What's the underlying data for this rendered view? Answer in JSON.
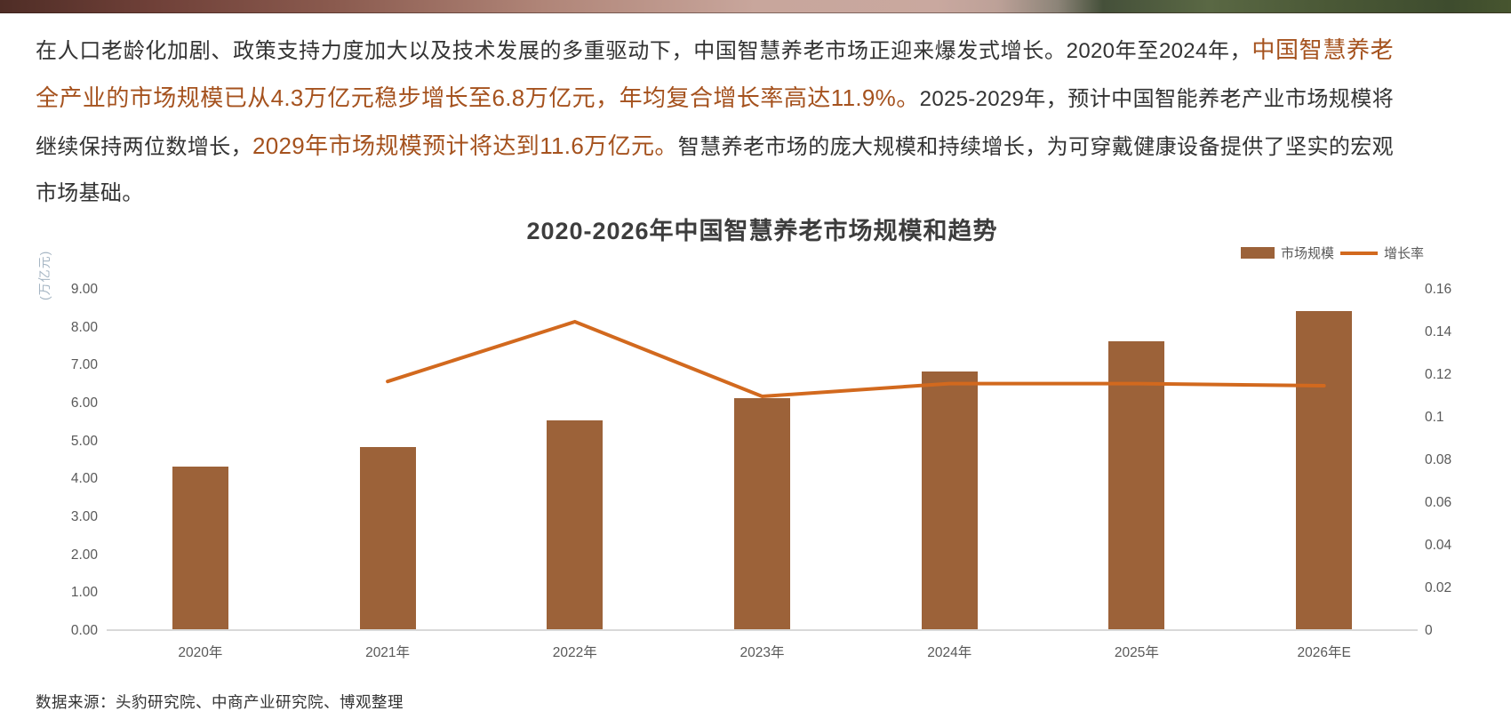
{
  "paragraph": {
    "segments": [
      {
        "text": "在人口老龄化加剧、政策支持力度加大以及技术发展的多重驱动下，中国智慧养老市场正迎来爆发式增长。2020年至2024年，",
        "highlight": false
      },
      {
        "text": "中国智慧养老全产业的市场规模已从4.3万亿元稳步增长至6.8万亿元，年均复合增长率高达11.9%。",
        "highlight": true
      },
      {
        "text": "2025-2029年，预计中国智能养老产业市场规模将继续保持两位数增长，",
        "highlight": false
      },
      {
        "text": "2029年市场规模预计将达到11.6万亿元。",
        "highlight": true
      },
      {
        "text": "智慧养老市场的庞大规模和持续增长，为可穿戴健康设备提供了坚实的宏观市场基础。",
        "highlight": false
      }
    ]
  },
  "chart_data": {
    "type": "bar+line",
    "title": "2020-2026年中国智慧养老市场规模和趋势",
    "categories": [
      "2020年",
      "2021年",
      "2022年",
      "2023年",
      "2024年",
      "2025年",
      "2026年E"
    ],
    "series": [
      {
        "name": "市场规模",
        "type": "bar",
        "axis": "left",
        "unit": "万亿元",
        "color": "#9C6239",
        "values": [
          4.3,
          4.8,
          5.5,
          6.1,
          6.8,
          7.6,
          8.4
        ]
      },
      {
        "name": "增长率",
        "type": "line",
        "axis": "right",
        "color": "#D2691E",
        "values": [
          null,
          0.117,
          0.145,
          0.11,
          0.116,
          0.116,
          0.115
        ]
      }
    ],
    "left_axis": {
      "title": "(万亿元)",
      "min": 0,
      "max": 9,
      "step": 1,
      "tick_labels": [
        "9.00",
        "8.00",
        "7.00",
        "6.00",
        "5.00",
        "4.00",
        "3.00",
        "2.00",
        "1.00",
        "0.00"
      ]
    },
    "right_axis": {
      "min": 0,
      "max": 0.16,
      "step": 0.02,
      "tick_labels": [
        "0.16",
        "0.14",
        "0.12",
        "0.1",
        "0.08",
        "0.06",
        "0.04",
        "0.02",
        "0"
      ]
    },
    "legend_position": "top-right",
    "grid": false
  },
  "source": "数据来源：头豹研究院、中商产业研究院、博观整理",
  "colors": {
    "bar": "#9C6239",
    "line": "#D2691E",
    "highlight_text": "#A5521E",
    "axis_text": "#595959",
    "axis_line": "#D9D9D9",
    "left_axis_title": "#A6B6C4"
  }
}
